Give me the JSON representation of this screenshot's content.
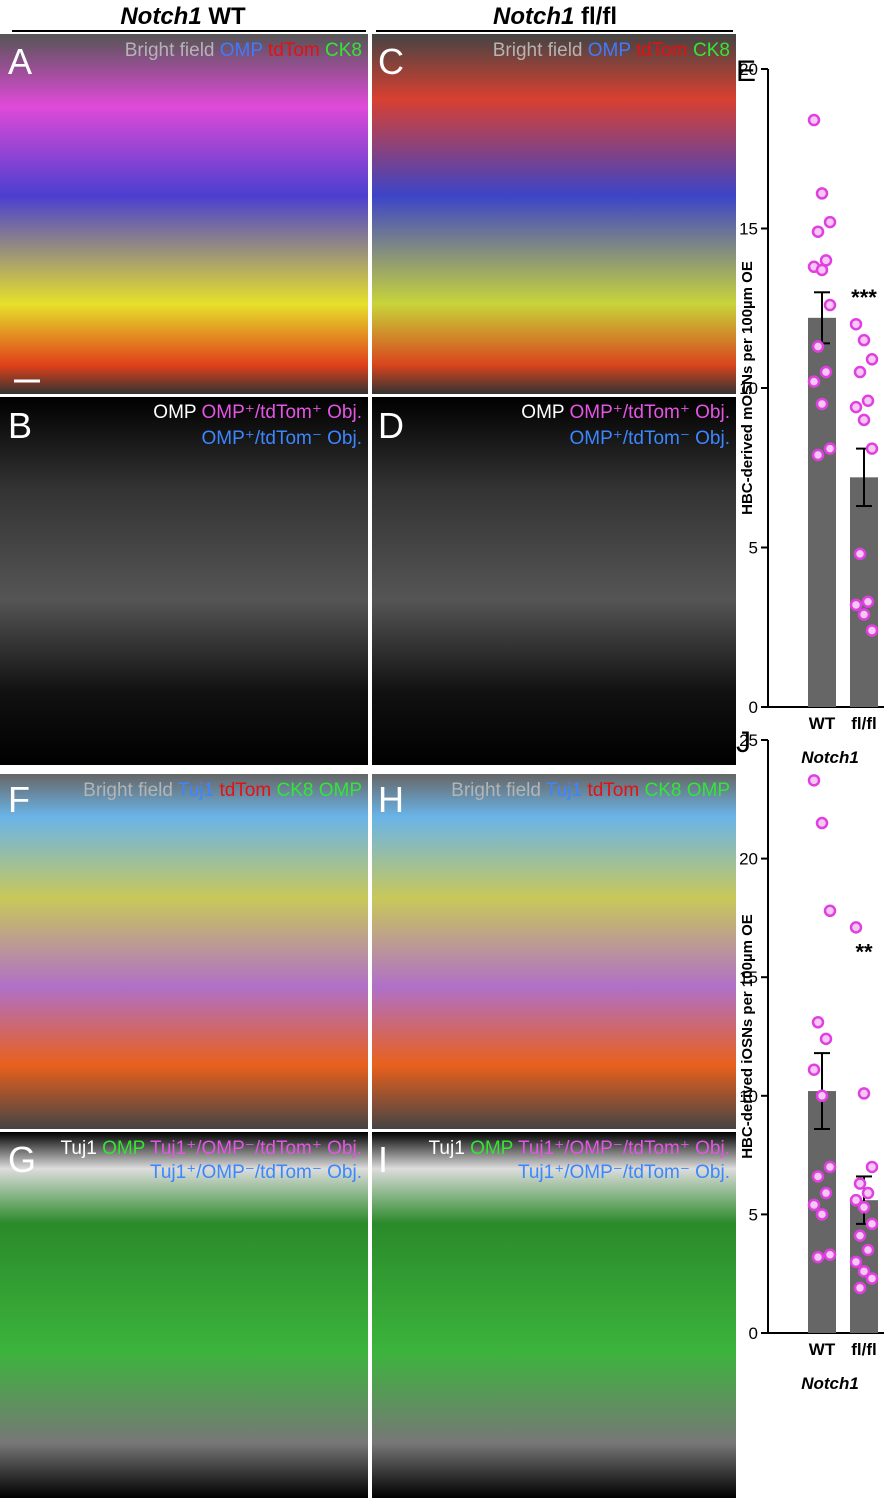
{
  "header": {
    "left": {
      "gene": "Notch1",
      "genotype": "WT"
    },
    "right": {
      "gene": "Notch1",
      "genotype": "fl/fl"
    }
  },
  "panels": {
    "A": {
      "label": "A",
      "channels": [
        "Bright field",
        "OMP",
        "tdTom",
        "CK8"
      ]
    },
    "B": {
      "label": "B",
      "channels": [
        "OMP",
        "OMP⁺/tdTom⁺ Obj.",
        "OMP⁺/tdTom⁻ Obj."
      ]
    },
    "C": {
      "label": "C",
      "channels": [
        "Bright field",
        "OMP",
        "tdTom",
        "CK8"
      ]
    },
    "D": {
      "label": "D",
      "channels": [
        "OMP",
        "OMP⁺/tdTom⁺ Obj.",
        "OMP⁺/tdTom⁻ Obj."
      ]
    },
    "F": {
      "label": "F",
      "channels": [
        "Bright field",
        "Tuj1",
        "tdTom",
        "CK8",
        "OMP"
      ]
    },
    "G": {
      "label": "G",
      "channels": [
        "Tuj1",
        "OMP",
        "Tuj1⁺/OMP⁻/tdTom⁺ Obj.",
        "Tuj1⁺/OMP⁻/tdTom⁻ Obj."
      ]
    },
    "H": {
      "label": "H",
      "channels": [
        "Bright field",
        "Tuj1",
        "tdTom",
        "CK8",
        "OMP"
      ]
    },
    "I": {
      "label": "I",
      "channels": [
        "Tuj1",
        "OMP",
        "Tuj1⁺/OMP⁻/tdTom⁺ Obj.",
        "Tuj1⁺/OMP⁻/tdTom⁻ Obj."
      ]
    }
  },
  "chart_data": [
    {
      "type": "bar",
      "panel_label": "E",
      "ylabel": "HBC-derived mOSNs per 100µm OE",
      "xlabel": "Notch1",
      "categories": [
        "WT",
        "fl/fl"
      ],
      "values": [
        12.2,
        7.2
      ],
      "errors": [
        0.8,
        0.9
      ],
      "color": "#666666",
      "point_color": "#e040e0",
      "points": [
        [
          18.4,
          16.1,
          15.2,
          14.9,
          14.0,
          13.8,
          13.7,
          12.6,
          11.3,
          10.5,
          10.2,
          9.5,
          8.1,
          7.9
        ],
        [
          12.0,
          11.5,
          10.9,
          10.5,
          9.6,
          9.4,
          9.0,
          8.1,
          4.8,
          3.3,
          3.2,
          2.9,
          2.4
        ]
      ],
      "annotation": "***",
      "ylim": [
        0,
        20
      ],
      "yticks": [
        0,
        5,
        10,
        15,
        20
      ]
    },
    {
      "type": "bar",
      "panel_label": "J",
      "ylabel": "HBC-derived iOSNs per 100µm OE",
      "xlabel": "Notch1",
      "categories": [
        "WT",
        "fl/fl"
      ],
      "values": [
        10.2,
        5.6
      ],
      "errors": [
        1.6,
        1.0
      ],
      "color": "#666666",
      "point_color": "#e040e0",
      "points": [
        [
          23.3,
          21.5,
          17.8,
          13.1,
          12.4,
          11.1,
          10.0,
          7.0,
          6.6,
          5.9,
          5.4,
          5.0,
          3.3,
          3.2
        ],
        [
          17.1,
          10.1,
          7.0,
          6.3,
          5.9,
          5.6,
          5.3,
          4.6,
          4.1,
          3.5,
          3.0,
          2.6,
          2.3,
          1.9
        ]
      ],
      "annotation": "**",
      "ylim": [
        0,
        25
      ],
      "yticks": [
        0,
        5,
        10,
        15,
        20,
        25
      ]
    }
  ]
}
